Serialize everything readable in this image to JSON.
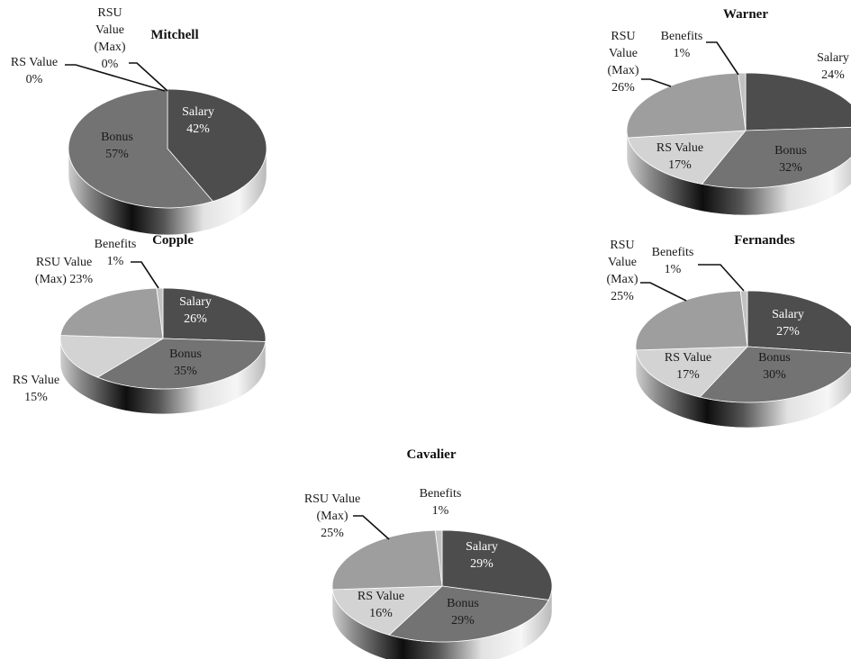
{
  "colors": {
    "Salary": "#4d4d4d",
    "Bonus": "#737373",
    "RS Value": "#d3d3d3",
    "RSU Value (Max)": "#9e9e9e",
    "Benefits": "#c2c2c2"
  },
  "chart_data": [
    {
      "type": "pie",
      "title": "Mitchell",
      "categories": [
        "Salary",
        "Bonus",
        "RS Value",
        "RSU Value (Max)"
      ],
      "values": [
        42,
        57,
        0,
        0
      ],
      "labels": [
        "Salary 42%",
        "Bonus 57%",
        "RS Value 0%",
        "RSU Value (Max) 0%"
      ]
    },
    {
      "type": "pie",
      "title": "Warner",
      "categories": [
        "Salary",
        "Bonus",
        "RS Value",
        "RSU Value (Max)",
        "Benefits"
      ],
      "values": [
        24,
        32,
        17,
        26,
        1
      ],
      "labels": [
        "Salary 24%",
        "Bonus 32%",
        "RS Value 17%",
        "RSU Value (Max) 26%",
        "Benefits 1%"
      ]
    },
    {
      "type": "pie",
      "title": "Copple",
      "categories": [
        "Salary",
        "Bonus",
        "RS Value",
        "RSU Value (Max)",
        "Benefits"
      ],
      "values": [
        26,
        35,
        15,
        23,
        1
      ],
      "labels": [
        "Salary 26%",
        "Bonus 35%",
        "RS Value 15%",
        "RSU Value (Max) 23%",
        "Benefits 1%"
      ]
    },
    {
      "type": "pie",
      "title": "Fernandes",
      "categories": [
        "Salary",
        "Bonus",
        "RS Value",
        "RSU Value (Max)",
        "Benefits"
      ],
      "values": [
        27,
        30,
        17,
        25,
        1
      ],
      "labels": [
        "Salary 27%",
        "Bonus 30%",
        "RS Value 17%",
        "RSU Value (Max) 25%",
        "Benefits 1%"
      ]
    },
    {
      "type": "pie",
      "title": "Cavalier",
      "categories": [
        "Salary",
        "Bonus",
        "RS Value",
        "RSU Value (Max)",
        "Benefits"
      ],
      "values": [
        29,
        29,
        16,
        25,
        1
      ],
      "labels": [
        "Salary 29%",
        "Bonus 29%",
        "RS Value 16%",
        "RSU Value (Max) 25%",
        "Benefits 1%"
      ]
    }
  ]
}
